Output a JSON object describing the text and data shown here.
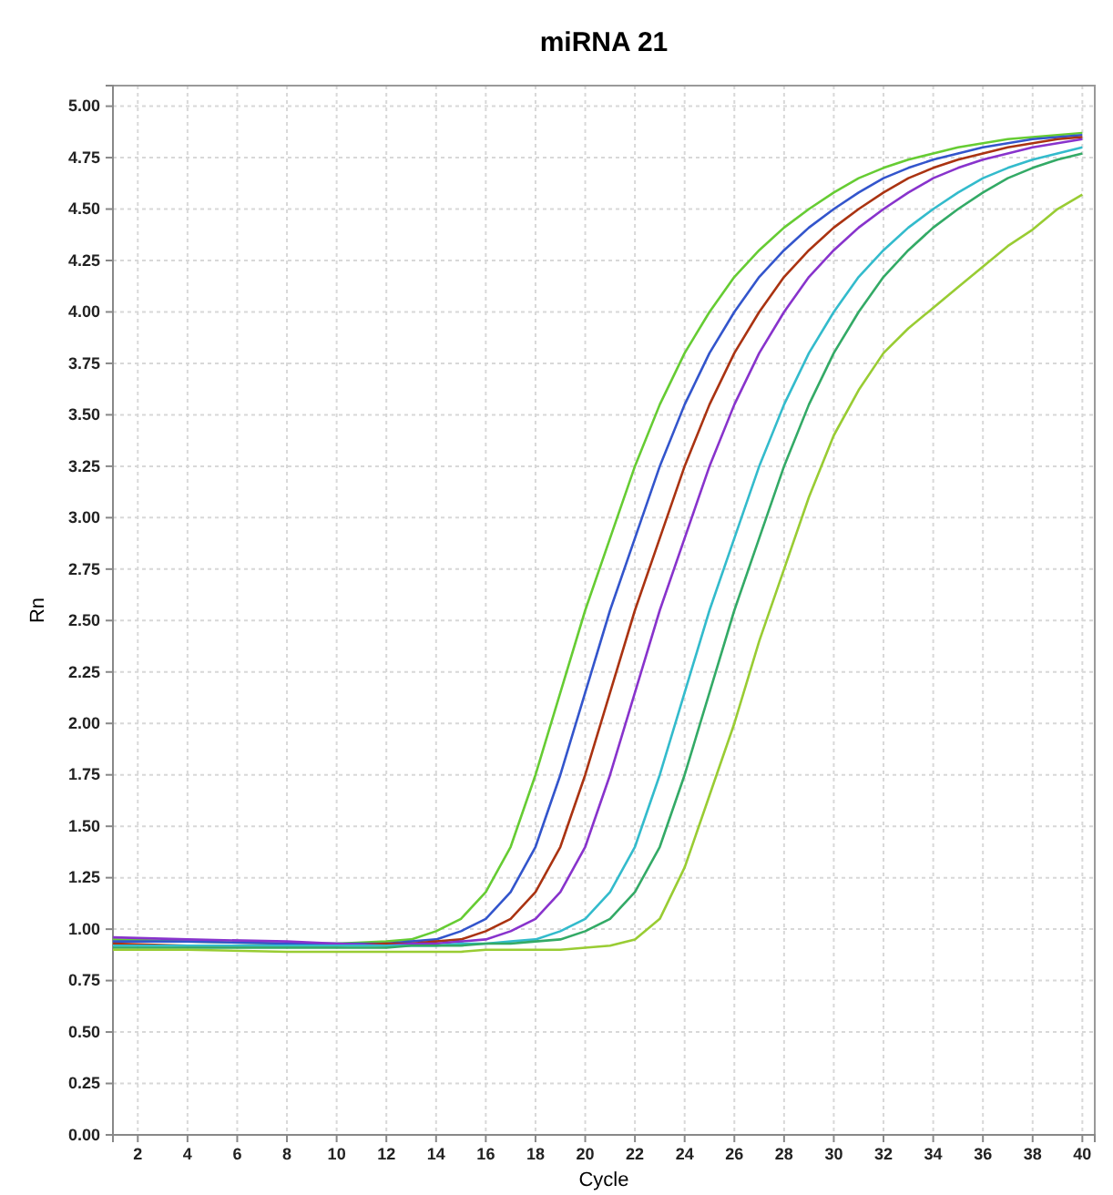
{
  "chart_data": {
    "type": "line",
    "title": "miRNA 21",
    "xlabel": "Cycle",
    "ylabel": "Rn",
    "grid": true,
    "line_style": "solid",
    "marker": "none",
    "xlim": [
      1,
      40.5
    ],
    "xticks": [
      2,
      4,
      6,
      8,
      10,
      12,
      14,
      16,
      18,
      20,
      22,
      24,
      26,
      28,
      30,
      32,
      34,
      36,
      38,
      40
    ],
    "ylim": [
      0,
      5.1
    ],
    "yticks": [
      {
        "value": 0,
        "label": "0.00"
      },
      {
        "value": 0.25,
        "label": "0.25"
      },
      {
        "value": 0.5,
        "label": "0.50"
      },
      {
        "value": 0.75,
        "label": "0.75"
      },
      {
        "value": 1,
        "label": "1.00"
      },
      {
        "value": 1.25,
        "label": "1.25"
      },
      {
        "value": 1.5,
        "label": "1.50"
      },
      {
        "value": 1.75,
        "label": "1.75"
      },
      {
        "value": 2,
        "label": "2.00"
      },
      {
        "value": 2.25,
        "label": "2.25"
      },
      {
        "value": 2.5,
        "label": "2.50"
      },
      {
        "value": 2.75,
        "label": "2.75"
      },
      {
        "value": 3,
        "label": "3.00"
      },
      {
        "value": 3.25,
        "label": "3.25"
      },
      {
        "value": 3.5,
        "label": "3.50"
      },
      {
        "value": 3.75,
        "label": "3.75"
      },
      {
        "value": 4,
        "label": "4.00"
      },
      {
        "value": 4.25,
        "label": "4.25"
      },
      {
        "value": 4.5,
        "label": "4.50"
      },
      {
        "value": 4.75,
        "label": "4.75"
      },
      {
        "value": 5,
        "label": "5.00"
      }
    ],
    "x": [
      1,
      4,
      8,
      10,
      12,
      13,
      14,
      15,
      16,
      17,
      18,
      19,
      20,
      21,
      22,
      23,
      24,
      25,
      26,
      27,
      28,
      29,
      30,
      31,
      32,
      33,
      34,
      35,
      36,
      37,
      38,
      39,
      40
    ],
    "series": [
      {
        "color": "#66cc33",
        "values": [
          0.95,
          0.94,
          0.93,
          0.93,
          0.94,
          0.95,
          0.99,
          1.05,
          1.18,
          1.4,
          1.75,
          2.15,
          2.55,
          2.9,
          3.25,
          3.55,
          3.8,
          4.0,
          4.17,
          4.3,
          4.41,
          4.5,
          4.58,
          4.65,
          4.7,
          4.74,
          4.77,
          4.8,
          4.82,
          4.84,
          4.85,
          4.86,
          4.87
        ]
      },
      {
        "color": "#3355cc",
        "values": [
          0.94,
          0.94,
          0.93,
          0.93,
          0.93,
          0.94,
          0.95,
          0.99,
          1.05,
          1.18,
          1.4,
          1.75,
          2.15,
          2.55,
          2.9,
          3.25,
          3.55,
          3.8,
          4.0,
          4.17,
          4.3,
          4.41,
          4.5,
          4.58,
          4.65,
          4.7,
          4.74,
          4.77,
          4.8,
          4.82,
          4.84,
          4.85,
          4.86
        ]
      },
      {
        "color": "#aa3311",
        "values": [
          0.93,
          0.92,
          0.92,
          0.92,
          0.93,
          0.93,
          0.94,
          0.95,
          0.99,
          1.05,
          1.18,
          1.4,
          1.75,
          2.15,
          2.55,
          2.9,
          3.25,
          3.55,
          3.8,
          4.0,
          4.17,
          4.3,
          4.41,
          4.5,
          4.58,
          4.65,
          4.7,
          4.74,
          4.77,
          4.8,
          4.82,
          4.84,
          4.85
        ]
      },
      {
        "color": "#8833cc",
        "values": [
          0.96,
          0.95,
          0.94,
          0.93,
          0.92,
          0.93,
          0.93,
          0.94,
          0.95,
          0.99,
          1.05,
          1.18,
          1.4,
          1.75,
          2.15,
          2.55,
          2.9,
          3.25,
          3.55,
          3.8,
          4.0,
          4.17,
          4.3,
          4.41,
          4.5,
          4.58,
          4.65,
          4.7,
          4.74,
          4.77,
          4.8,
          4.82,
          4.84
        ]
      },
      {
        "color": "#33bbcc",
        "values": [
          0.92,
          0.92,
          0.92,
          0.92,
          0.92,
          0.92,
          0.92,
          0.93,
          0.93,
          0.94,
          0.95,
          0.99,
          1.05,
          1.18,
          1.4,
          1.75,
          2.15,
          2.55,
          2.9,
          3.25,
          3.55,
          3.8,
          4.0,
          4.17,
          4.3,
          4.41,
          4.5,
          4.58,
          4.65,
          4.7,
          4.74,
          4.77,
          4.8
        ]
      },
      {
        "color": "#33aa66",
        "values": [
          0.91,
          0.91,
          0.91,
          0.91,
          0.91,
          0.92,
          0.92,
          0.92,
          0.93,
          0.93,
          0.94,
          0.95,
          0.99,
          1.05,
          1.18,
          1.4,
          1.75,
          2.15,
          2.55,
          2.9,
          3.25,
          3.55,
          3.8,
          4.0,
          4.17,
          4.3,
          4.41,
          4.5,
          4.58,
          4.65,
          4.7,
          4.74,
          4.77
        ]
      },
      {
        "color": "#99cc33",
        "values": [
          0.9,
          0.9,
          0.89,
          0.89,
          0.89,
          0.89,
          0.89,
          0.89,
          0.9,
          0.9,
          0.9,
          0.9,
          0.91,
          0.92,
          0.95,
          1.05,
          1.3,
          1.65,
          2.0,
          2.4,
          2.75,
          3.1,
          3.4,
          3.62,
          3.8,
          3.92,
          4.02,
          4.12,
          4.22,
          4.32,
          4.4,
          4.5,
          4.57
        ]
      }
    ]
  }
}
